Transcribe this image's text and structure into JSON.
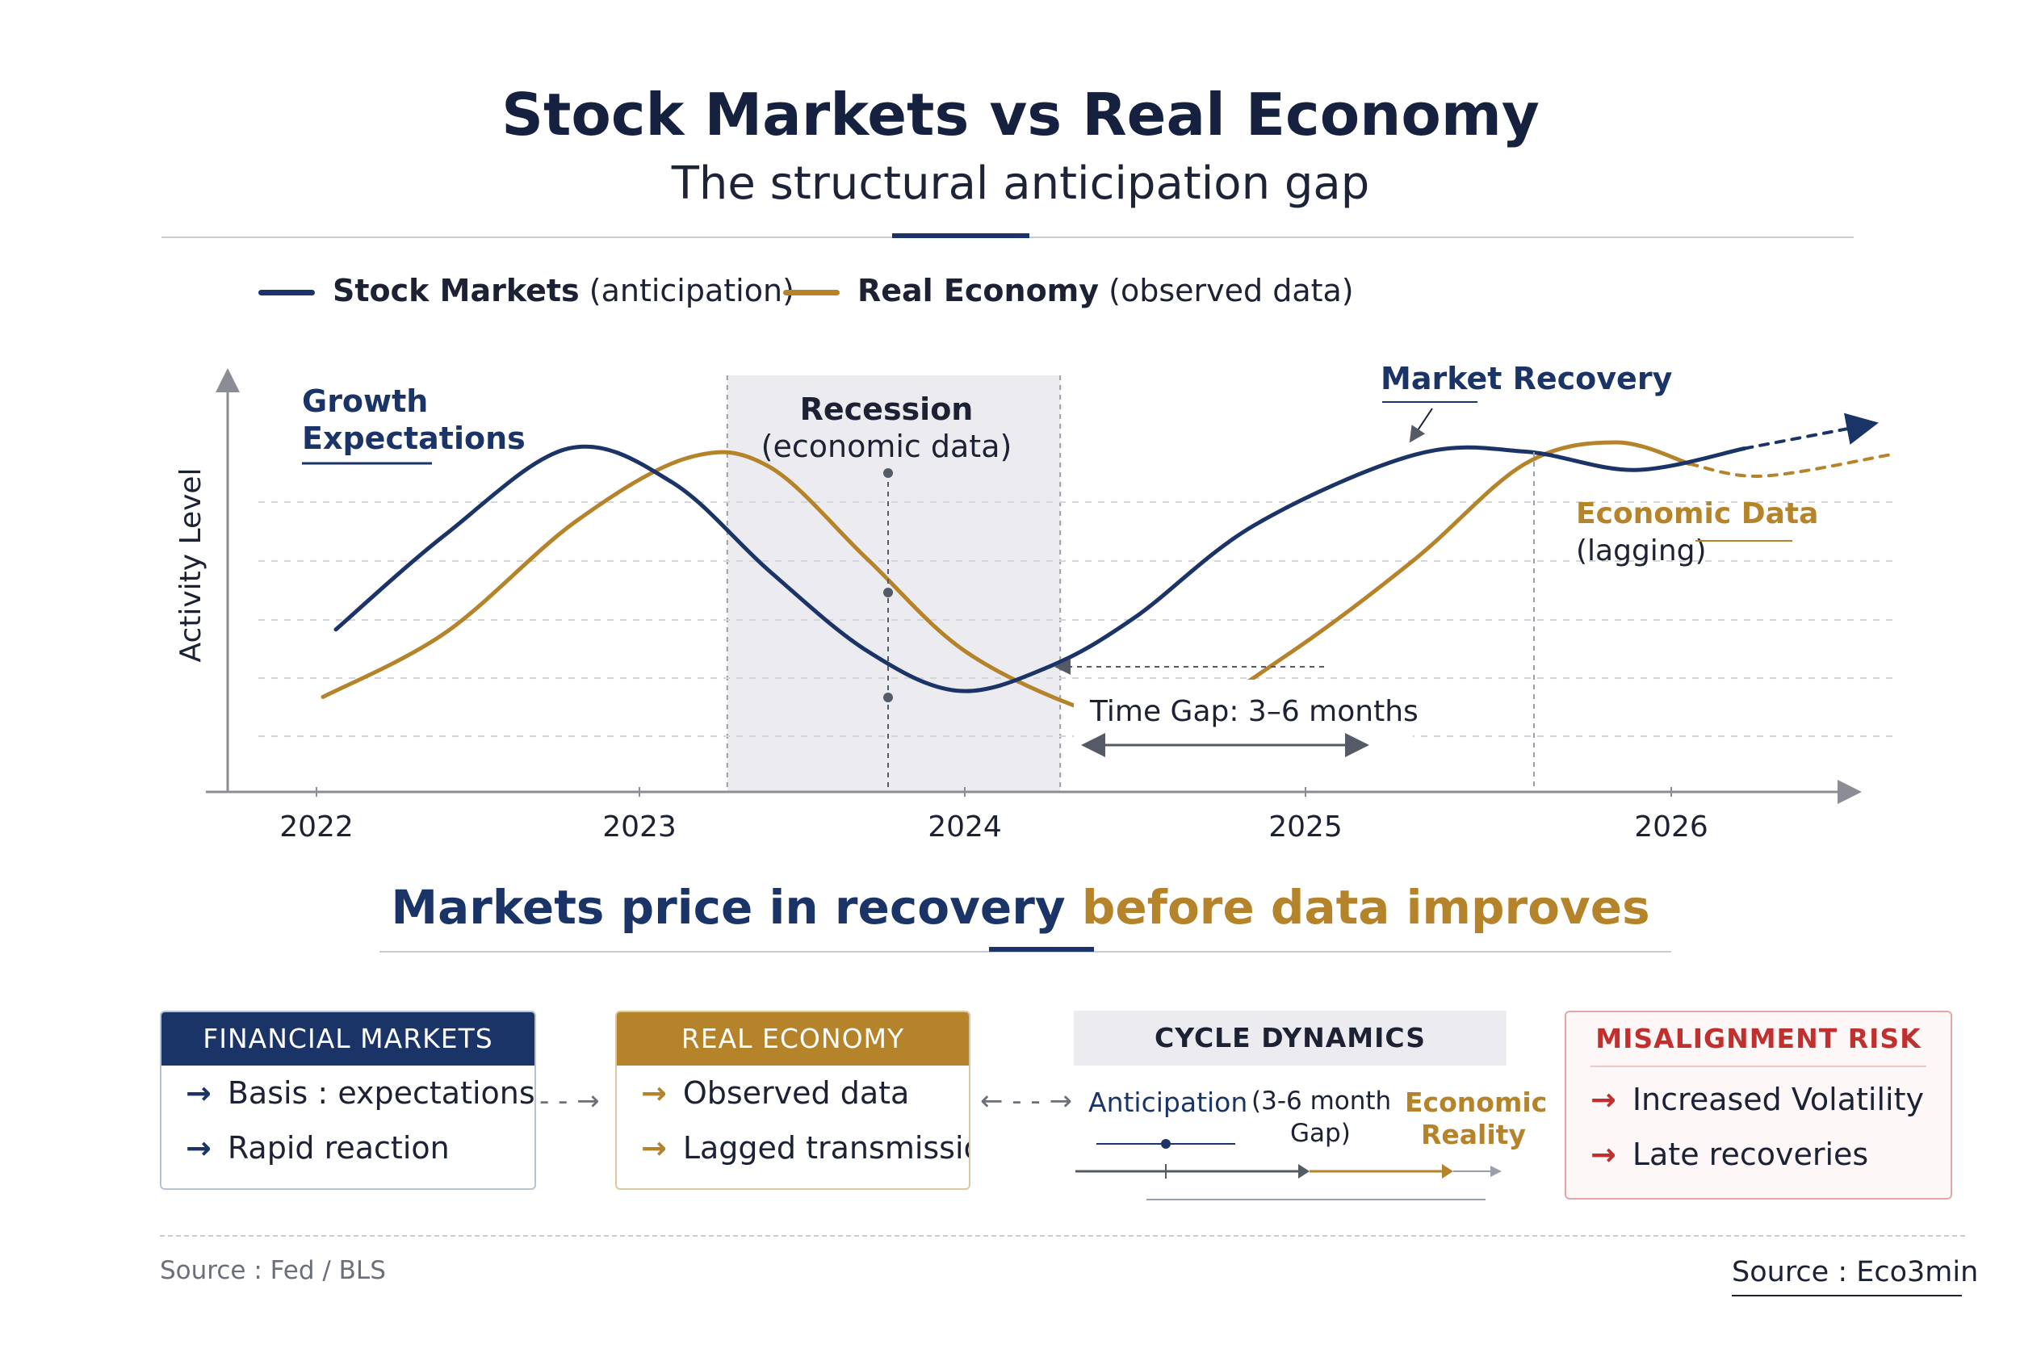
{
  "title": "Stock Markets vs Real Economy",
  "subtitle": "The structural anticipation gap",
  "legend": {
    "stock": {
      "name": "Stock Markets",
      "note": "(anticipation)"
    },
    "economy": {
      "name": "Real Economy",
      "note": "(observed data)"
    }
  },
  "colors": {
    "stock": "#1b3468",
    "economy": "#b5832a",
    "risk": "#c0302f",
    "grid": "#d3d6dc",
    "axis": "#8a8d95"
  },
  "chart_data": {
    "type": "line",
    "ylabel": "Activity Level",
    "xlabel": "",
    "x_ticks": [
      "2022",
      "2023",
      "2024",
      "2025",
      "2026"
    ],
    "series": [
      {
        "name": "Stock Markets",
        "style": "solid-then-dashed-arrow",
        "points": [
          [
            2022.06,
            0.29
          ],
          [
            2022.4,
            0.6
          ],
          [
            2022.78,
            0.88
          ],
          [
            2023.1,
            0.77
          ],
          [
            2023.4,
            0.48
          ],
          [
            2023.7,
            0.22
          ],
          [
            2023.98,
            0.09
          ],
          [
            2024.25,
            0.17
          ],
          [
            2024.5,
            0.33
          ],
          [
            2024.85,
            0.63
          ],
          [
            2025.3,
            0.86
          ],
          [
            2025.6,
            0.87
          ],
          [
            2025.9,
            0.81
          ],
          [
            2026.2,
            0.88
          ],
          [
            2026.55,
            0.96
          ]
        ],
        "dashed_from": 2026.05
      },
      {
        "name": "Real Economy",
        "style": "solid-then-dashed",
        "points": [
          [
            2022.02,
            0.07
          ],
          [
            2022.4,
            0.28
          ],
          [
            2022.8,
            0.64
          ],
          [
            2023.15,
            0.85
          ],
          [
            2023.4,
            0.82
          ],
          [
            2023.7,
            0.52
          ],
          [
            2024.0,
            0.22
          ],
          [
            2024.35,
            0.03
          ],
          [
            2024.6,
            -0.02
          ],
          [
            2024.95,
            0.21
          ],
          [
            2025.3,
            0.52
          ],
          [
            2025.6,
            0.83
          ],
          [
            2025.85,
            0.9
          ],
          [
            2026.05,
            0.83
          ],
          [
            2026.25,
            0.79
          ],
          [
            2026.6,
            0.86
          ]
        ],
        "dashed_from": 2026.05
      }
    ],
    "annotations": {
      "growth": "Growth Expectations",
      "recession_title": "Recession",
      "recession_sub": "(economic data)",
      "recovery": "Market Recovery",
      "econ_title": "Economic Data",
      "econ_sub": "(lagging)",
      "gap": "Time Gap: 3–6 months"
    },
    "shaded_region": {
      "label": "Recession",
      "x_start": 2023.27,
      "x_end": 2024.28
    }
  },
  "takeaway": {
    "part1": "Markets price in recovery",
    "part2": "before data improves"
  },
  "panels": {
    "financial": {
      "header": "FINANCIAL MARKETS",
      "items": [
        "Basis : expectations",
        "Rapid reaction"
      ]
    },
    "economy": {
      "header": "REAL ECONOMY",
      "items": [
        "Observed data",
        "Lagged transmission"
      ]
    },
    "cycle": {
      "header": "CYCLE DYNAMICS",
      "anticipation": "Anticipation",
      "gap_line1": "(3-6 month",
      "gap_line2": "Gap)",
      "reality_line1": "Economic",
      "reality_line2": "Reality"
    },
    "risk": {
      "header": "MISALIGNMENT RISK",
      "items": [
        "Increased Volatility",
        "Late recoveries"
      ]
    }
  },
  "footer": {
    "left": "Source : Fed / BLS",
    "right": "Source : Eco3min"
  },
  "arrow_glyph": "→"
}
